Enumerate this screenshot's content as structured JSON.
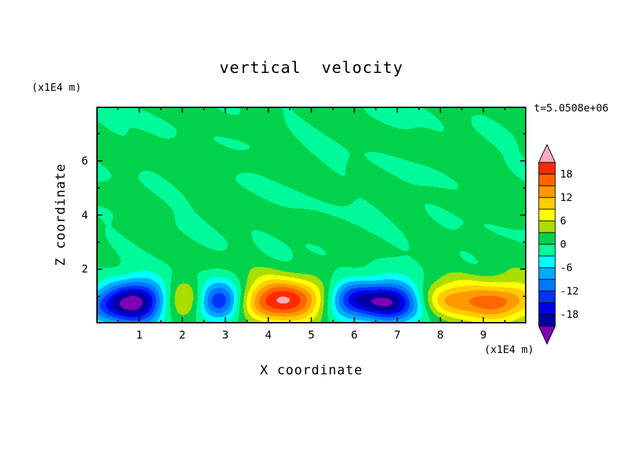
{
  "title": "vertical  velocity",
  "time_label": "t=5.0508e+06",
  "axes": {
    "x_label": "X coordinate",
    "x_unit": "(x1E4 m)",
    "y_label": "Z coordinate",
    "y_unit": "(x1E4 m)",
    "x_ticks": [
      1,
      2,
      3,
      4,
      5,
      6,
      7,
      8,
      9
    ],
    "y_ticks": [
      2,
      4,
      6
    ],
    "y_minor_ticks": [
      1,
      3,
      5,
      7
    ],
    "x_minor_step": 0.5
  },
  "colorbar": {
    "labels": [
      18,
      12,
      6,
      0,
      -6,
      -12,
      -18
    ]
  },
  "frame_color": "#000000",
  "chart_data": {
    "type": "heatmap",
    "title": "vertical velocity",
    "xlabel": "X coordinate (x1E4 m)",
    "ylabel": "Z coordinate (x1E4 m)",
    "x_range": [
      0,
      10
    ],
    "z_range": [
      0,
      8
    ],
    "contour_interval": 3,
    "levels": [
      -21,
      -18,
      -15,
      -12,
      -9,
      -6,
      -3,
      0,
      3,
      6,
      9,
      12,
      15,
      18,
      21
    ],
    "colors": [
      "#7d00b5",
      "#0000a0",
      "#0000e6",
      "#0033ff",
      "#0077ff",
      "#00aaff",
      "#00ffff",
      "#00fa9a",
      "#00d24b",
      "#aadd00",
      "#ffff00",
      "#ffcc00",
      "#ff9900",
      "#ff6600",
      "#ff2a00",
      "#f4aebe"
    ],
    "background_value": 0.5,
    "noise_waves": [
      [
        0.54,
        1.8,
        2.6,
        1.3
      ],
      [
        0.48,
        3.1,
        1.2,
        4.1
      ],
      [
        0.42,
        0.9,
        3.4,
        2.2
      ],
      [
        0.36,
        4.2,
        2.1,
        5.5
      ],
      [
        0.3,
        2.6,
        4.8,
        0.7
      ],
      [
        0.24,
        5.6,
        3.3,
        3.0
      ]
    ],
    "cells": [
      {
        "x": 0.25,
        "z": 0.7,
        "sx": 0.45,
        "sz": 0.5,
        "amp": -9
      },
      {
        "x": 1.0,
        "z": 0.8,
        "sx": 0.5,
        "sz": 0.55,
        "amp": -22
      },
      {
        "x": 2.1,
        "z": 0.85,
        "sx": 0.45,
        "sz": 0.5,
        "amp": 11.5
      },
      {
        "x": 2.8,
        "z": 0.8,
        "sx": 0.42,
        "sz": 0.5,
        "amp": -20
      },
      {
        "x": 3.9,
        "z": 0.8,
        "sx": 0.55,
        "sz": 0.5,
        "amp": 9
      },
      {
        "x": 4.65,
        "z": 0.85,
        "sx": 0.75,
        "sz": 0.55,
        "amp": 15.5
      },
      {
        "x": 5.85,
        "z": 0.85,
        "sx": 0.45,
        "sz": 0.5,
        "amp": -17
      },
      {
        "x": 6.85,
        "z": 0.8,
        "sx": 0.5,
        "sz": 0.55,
        "amp": -21
      },
      {
        "x": 8.05,
        "z": 0.8,
        "sx": 0.35,
        "sz": 0.4,
        "amp": 4
      },
      {
        "x": 9.1,
        "z": 0.85,
        "sx": 0.95,
        "sz": 0.6,
        "amp": 13
      },
      {
        "x": 9.45,
        "z": 0.8,
        "sx": 0.4,
        "sz": 0.35,
        "amp": 4
      }
    ]
  }
}
